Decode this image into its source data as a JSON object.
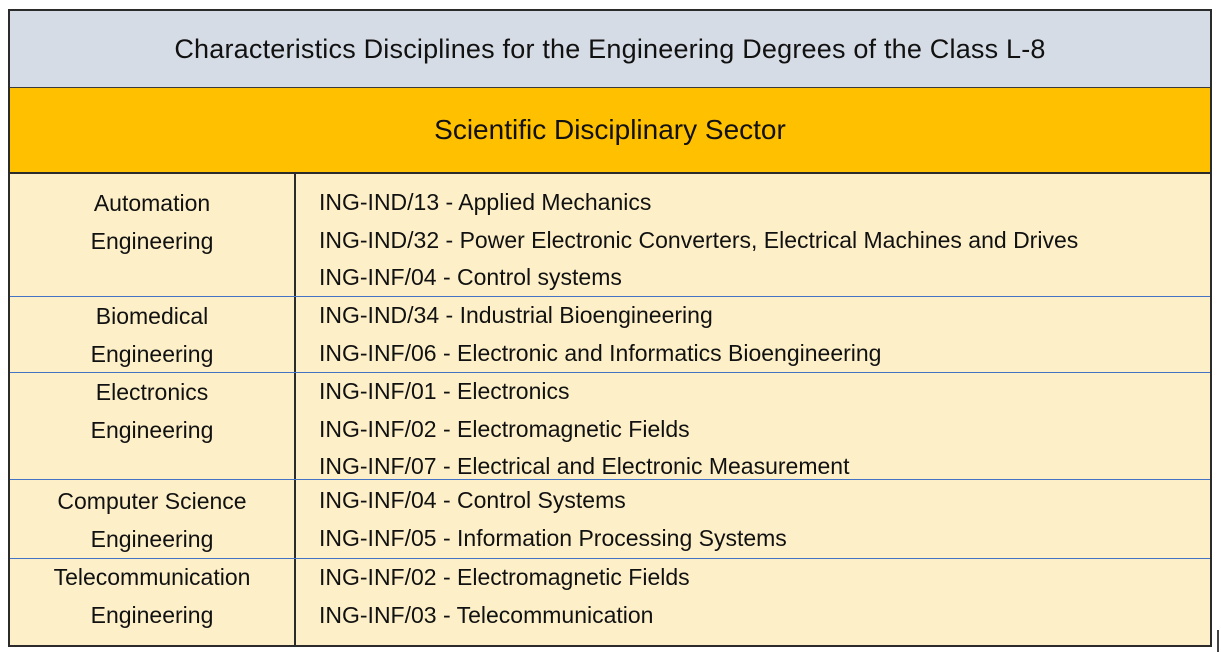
{
  "title": "Characteristics Disciplines for the Engineering Degrees of the Class L-8",
  "sector_header": "Scientific Disciplinary Sector",
  "groups": [
    {
      "dept_line1": "Automation",
      "dept_line2": "Engineering",
      "codes": [
        "ING-IND/13 - Applied Mechanics",
        "ING-IND/32 - Power Electronic Converters, Electrical Machines and Drives",
        "ING-INF/04 - Control systems"
      ]
    },
    {
      "dept_line1": "Biomedical",
      "dept_line2": "Engineering",
      "codes": [
        "ING-IND/34 - Industrial Bioengineering",
        "ING-INF/06 - Electronic and Informatics Bioengineering"
      ]
    },
    {
      "dept_line1": "Electronics",
      "dept_line2": "Engineering",
      "codes": [
        "ING-INF/01 - Electronics",
        "ING-INF/02 - Electromagnetic Fields",
        "ING-INF/07 - Electrical and Electronic Measurement"
      ]
    },
    {
      "dept_line1": "Computer Science",
      "dept_line2": "Engineering",
      "codes": [
        "ING-INF/04 - Control Systems",
        "ING-INF/05 - Information Processing Systems"
      ]
    },
    {
      "dept_line1": "Telecommunication",
      "dept_line2": "Engineering",
      "codes": [
        "ING-INF/02 - Electromagnetic Fields",
        "ING-INF/03 - Telecommunication"
      ]
    }
  ],
  "colors": {
    "title_bg": "#d6dce5",
    "sector_bg": "#ffc000",
    "body_bg": "#fdf0c9",
    "row_divider": "#4472c4"
  }
}
